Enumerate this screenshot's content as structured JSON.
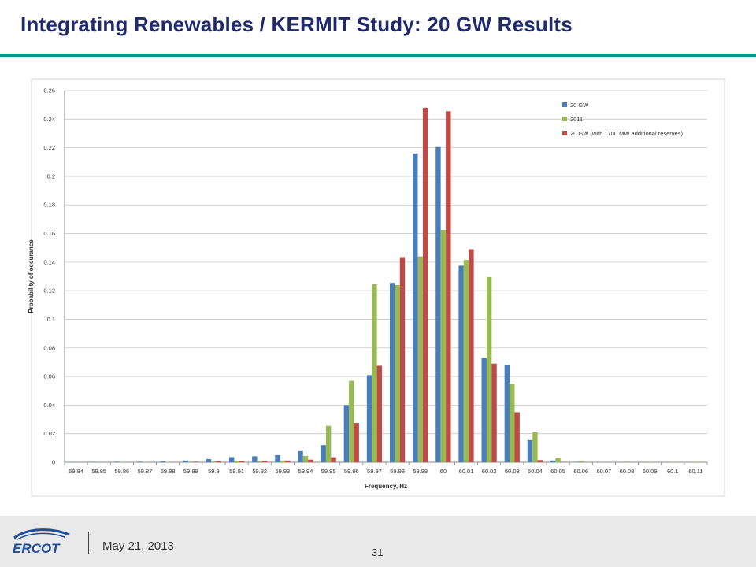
{
  "slide": {
    "title": "Integrating Renewables / KERMIT Study:  20 GW Results",
    "date": "May 21, 2013",
    "page_number": "31",
    "logo_text": "ERCOT"
  },
  "colors": {
    "title": "#1f2a6e",
    "rule": "#0e8f8b",
    "series": [
      "#4a7ebb",
      "#98b954",
      "#be4b48"
    ],
    "footer_bg": "#e9e9e9"
  },
  "chart_data": {
    "type": "bar",
    "title": "",
    "xlabel": "Frequency, Hz",
    "ylabel": "Probability of occurance",
    "ylim": [
      0,
      0.26
    ],
    "yticks": [
      "0",
      "0.02",
      "0.04",
      "0.06",
      "0.08",
      "0.1",
      "0.12",
      "0.14",
      "0.16",
      "0.18",
      "0.2",
      "0.22",
      "0.24",
      "0.26"
    ],
    "grid": true,
    "legend_position": "top-right",
    "categories": [
      "59.84",
      "59.85",
      "59.86",
      "59.87",
      "59.88",
      "59.89",
      "59.9",
      "59.91",
      "59.92",
      "59.93",
      "59.94",
      "59.95",
      "59.96",
      "59.97",
      "59.98",
      "59.99",
      "60",
      "60.01",
      "60.02",
      "60.03",
      "60.04",
      "60.05",
      "60.06",
      "60.07",
      "60.08",
      "60.09",
      "60.1",
      "60.11"
    ],
    "series": [
      {
        "name": "20 GW",
        "values": [
          0.0002,
          0.0003,
          0.0004,
          0.0004,
          0.0006,
          0.0012,
          0.0022,
          0.0036,
          0.0042,
          0.005,
          0.0078,
          0.012,
          0.04,
          0.061,
          0.1255,
          0.216,
          0.2205,
          0.1375,
          0.073,
          0.068,
          0.0155,
          0.0012,
          0.0003,
          0.0002,
          0.0001,
          0.0001,
          0,
          0
        ]
      },
      {
        "name": "2011",
        "values": [
          0,
          0.0001,
          0.0002,
          0.0002,
          0.0003,
          0.0004,
          0.0005,
          0.0006,
          0.0006,
          0.0012,
          0.0045,
          0.0255,
          0.057,
          0.1245,
          0.124,
          0.144,
          0.1625,
          0.1415,
          0.1295,
          0.055,
          0.021,
          0.0032,
          0.0007,
          0.0003,
          0.0004,
          0.0003,
          0.0002,
          0.0002
        ]
      },
      {
        "name": "20 GW (with 1700 MW additional reserves)",
        "values": [
          0,
          0,
          0,
          0,
          0.0001,
          0.0004,
          0.0007,
          0.0009,
          0.0011,
          0.0012,
          0.0018,
          0.0035,
          0.0275,
          0.0675,
          0.1435,
          0.248,
          0.2455,
          0.149,
          0.069,
          0.035,
          0.0015,
          0.0002,
          0.0001,
          0,
          0,
          0,
          0,
          0
        ]
      }
    ]
  }
}
